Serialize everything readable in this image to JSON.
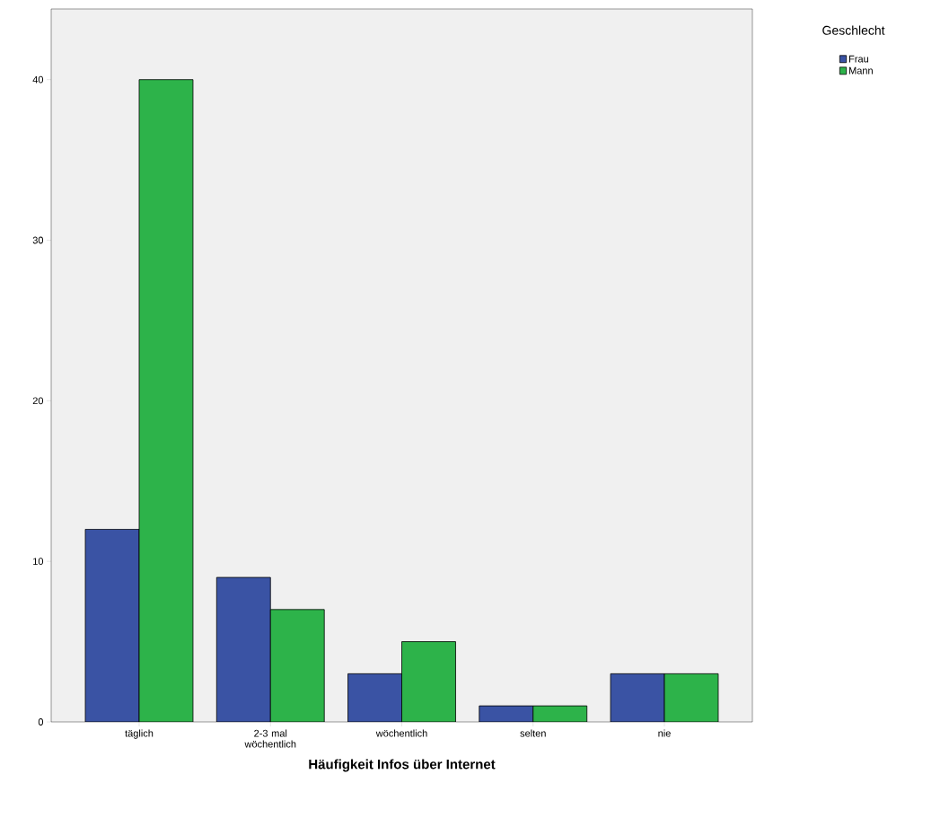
{
  "chart_data": {
    "type": "bar",
    "xlabel": "Häufigkeit Infos über Internet",
    "legend_title": "Geschlecht",
    "legend": "top right",
    "categories": [
      "täglich",
      "2-3 mal wöchentlich",
      "wöchentlich",
      "selten",
      "nie"
    ],
    "series": [
      {
        "name": "Frau",
        "color": "#3a53a4",
        "values": [
          12,
          9,
          3,
          1,
          3
        ]
      },
      {
        "name": "Mann",
        "color": "#2db34a",
        "values": [
          40,
          7,
          5,
          1,
          3
        ]
      }
    ],
    "ylim": [
      0,
      44.4
    ],
    "yticks": [
      0,
      10,
      20,
      30,
      40
    ]
  }
}
